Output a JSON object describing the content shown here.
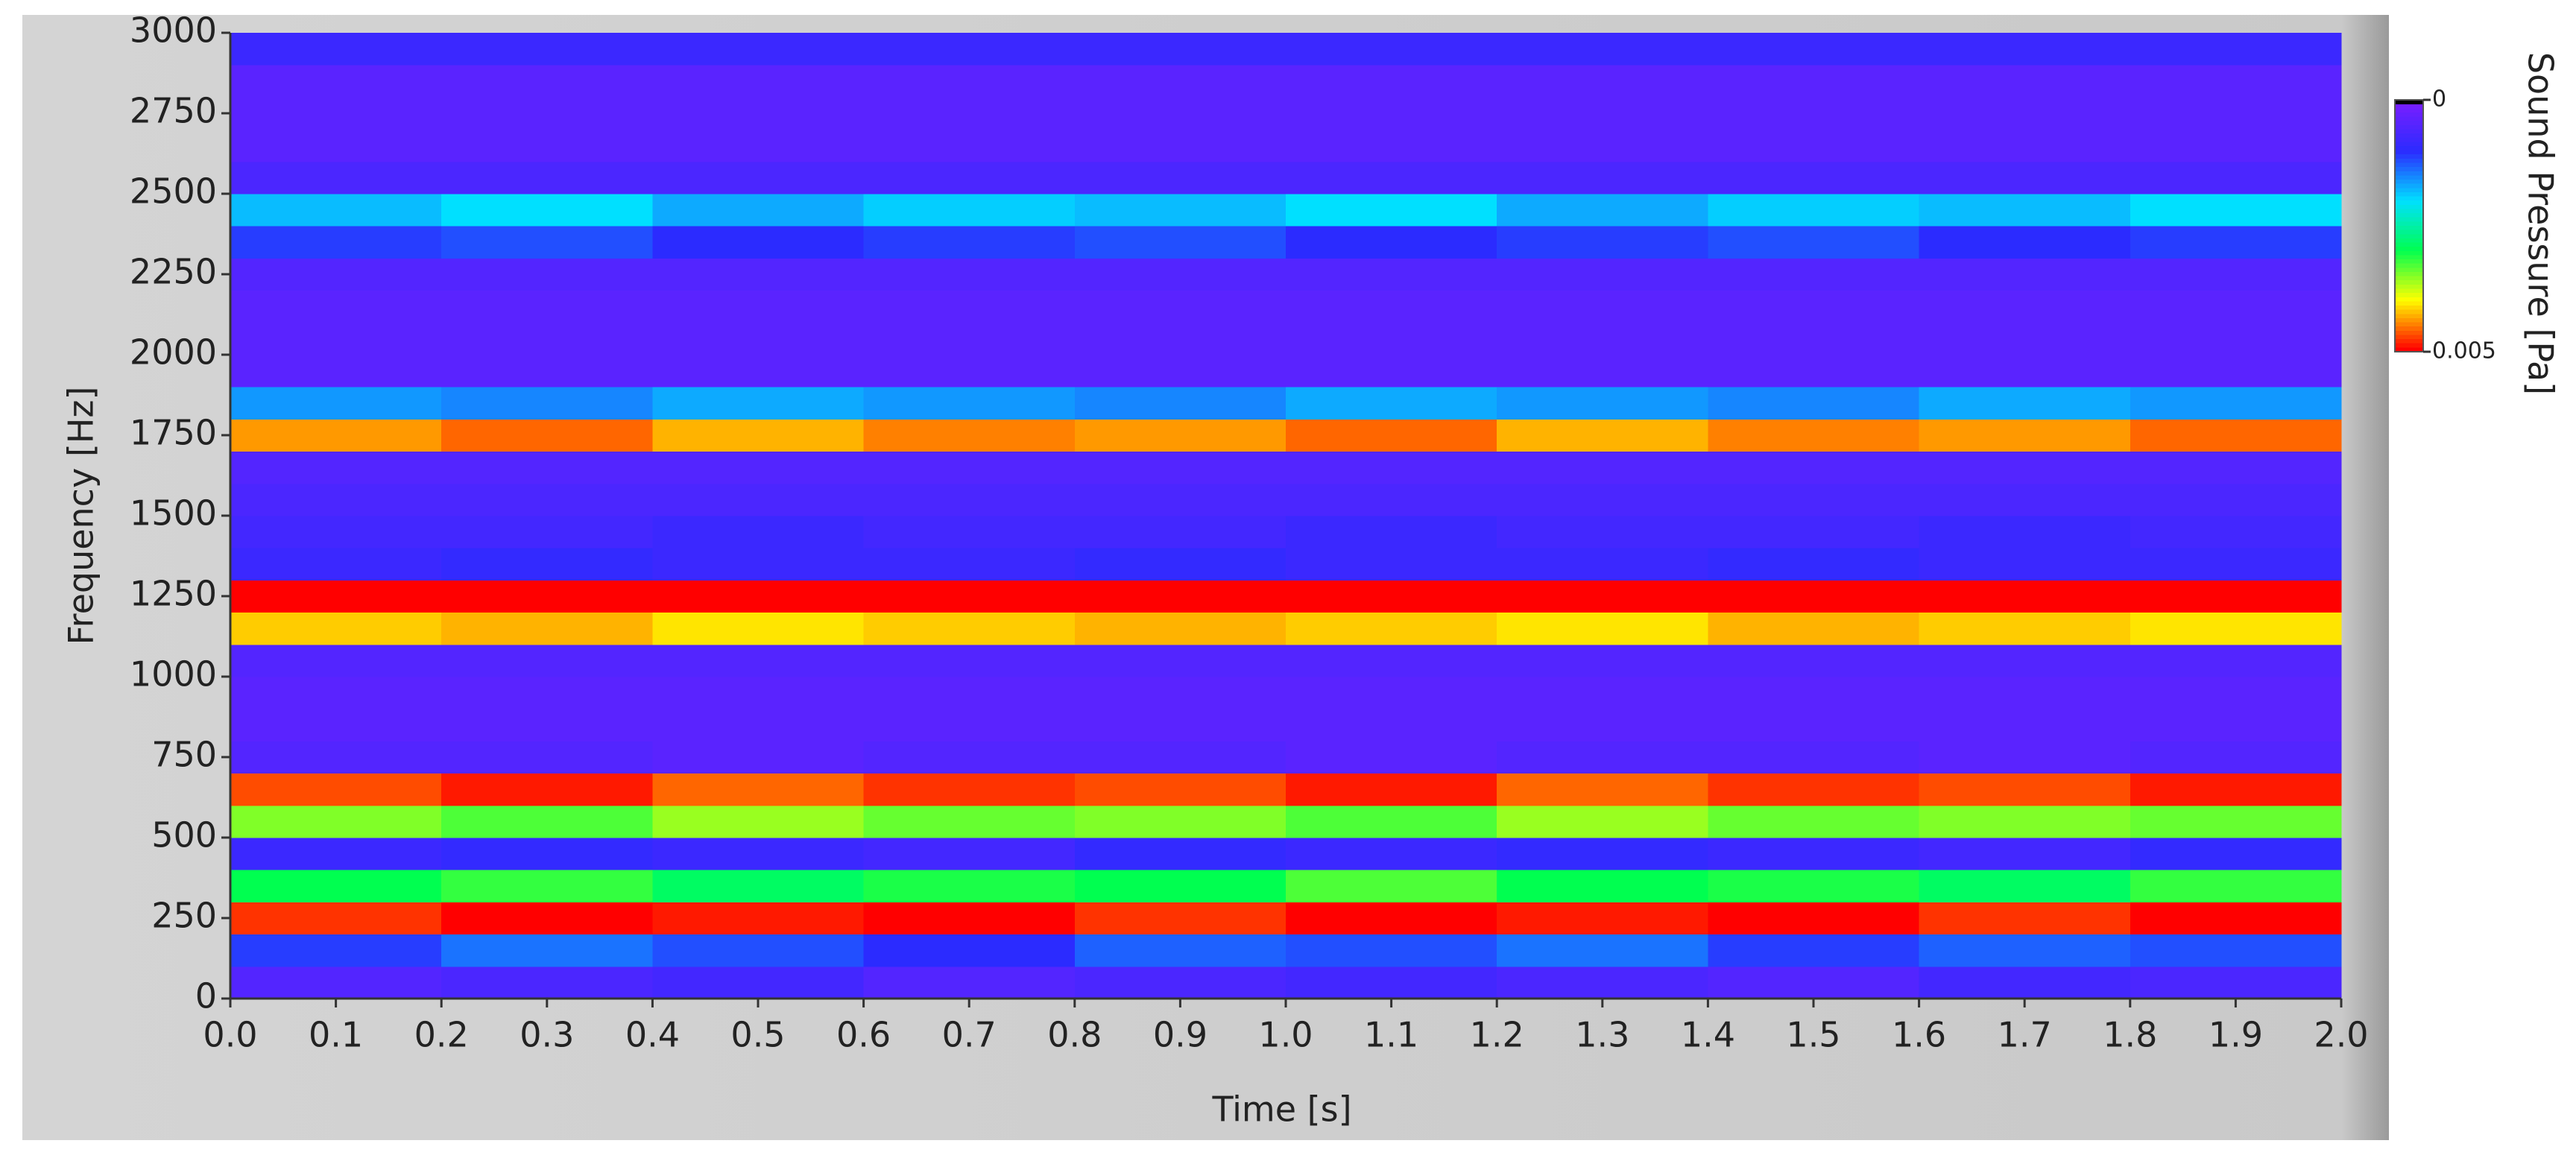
{
  "chart_data": {
    "type": "heatmap",
    "xlabel": "Time [s]",
    "ylabel": "Frequency [Hz]",
    "xlim": [
      0,
      2
    ],
    "ylim": [
      0,
      3000
    ],
    "xticks": [
      {
        "value": 0,
        "label": "0.0"
      },
      0.1,
      0.2,
      0.3,
      0.4,
      0.5,
      0.6,
      0.7,
      0.8,
      0.9,
      {
        "value": 1,
        "label": "1.0"
      },
      1.1,
      1.2,
      1.3,
      1.4,
      1.5,
      1.6,
      1.7,
      1.8,
      1.9,
      {
        "value": 2,
        "label": "2.0"
      }
    ],
    "yticks": [
      0,
      250,
      500,
      750,
      1000,
      1250,
      1500,
      1750,
      2000,
      2250,
      2500,
      2750,
      3000
    ],
    "colormap": [
      "#7a1eff",
      "#2b2bff",
      "#00e0ff",
      "#00ff50",
      "#ffff00",
      "#ff0000"
    ],
    "colorbar": {
      "label": "Sound Pressure [Pa]",
      "lim": [
        0,
        0.005
      ],
      "ticks": [
        0,
        0.005
      ]
    },
    "values": [
      [
        0.0005,
        0.0006,
        0.0007,
        0.0005,
        0.0006,
        0.0007,
        0.0006,
        0.0005,
        0.0007,
        0.0006
      ],
      [
        0.0011,
        0.0014,
        0.0012,
        0.001,
        0.0013,
        0.0012,
        0.0014,
        0.0011,
        0.0013,
        0.0012
      ],
      [
        0.0048,
        0.005,
        0.0049,
        0.005,
        0.0048,
        0.005,
        0.0049,
        0.005,
        0.0048,
        0.005
      ],
      [
        0.003,
        0.0032,
        0.0029,
        0.0031,
        0.003,
        0.0033,
        0.003,
        0.0031,
        0.0029,
        0.0032
      ],
      [
        0.0008,
        0.0009,
        0.0008,
        0.0007,
        0.0009,
        0.0008,
        0.0009,
        0.0008,
        0.0007,
        0.0009
      ],
      [
        0.0035,
        0.0033,
        0.0036,
        0.0034,
        0.0035,
        0.0033,
        0.0036,
        0.0034,
        0.0035,
        0.0034
      ],
      [
        0.0047,
        0.0049,
        0.0046,
        0.0048,
        0.0047,
        0.0049,
        0.0046,
        0.0048,
        0.0047,
        0.0049
      ],
      [
        0.0005,
        0.0005,
        0.0004,
        0.0005,
        0.0005,
        0.0004,
        0.0005,
        0.0005,
        0.0004,
        0.0005
      ],
      [
        0.0004,
        0.0004,
        0.0004,
        0.0004,
        0.0004,
        0.0004,
        0.0004,
        0.0004,
        0.0004,
        0.0004
      ],
      [
        0.0004,
        0.0004,
        0.0004,
        0.0004,
        0.0004,
        0.0004,
        0.0004,
        0.0004,
        0.0004,
        0.0004
      ],
      [
        0.0005,
        0.0005,
        0.0005,
        0.0005,
        0.0005,
        0.0005,
        0.0005,
        0.0005,
        0.0005,
        0.0005
      ],
      [
        0.0042,
        0.0043,
        0.0041,
        0.0042,
        0.0043,
        0.0042,
        0.0041,
        0.0043,
        0.0042,
        0.0041
      ],
      [
        0.005,
        0.005,
        0.005,
        0.005,
        0.005,
        0.005,
        0.005,
        0.005,
        0.005,
        0.005
      ],
      [
        0.0008,
        0.0009,
        0.0008,
        0.0008,
        0.0009,
        0.0008,
        0.0008,
        0.0009,
        0.0008,
        0.0008
      ],
      [
        0.0007,
        0.0007,
        0.0008,
        0.0007,
        0.0007,
        0.0008,
        0.0007,
        0.0007,
        0.0008,
        0.0007
      ],
      [
        0.0006,
        0.0006,
        0.0006,
        0.0006,
        0.0006,
        0.0006,
        0.0006,
        0.0006,
        0.0006,
        0.0006
      ],
      [
        0.0005,
        0.0005,
        0.0005,
        0.0005,
        0.0005,
        0.0005,
        0.0005,
        0.0005,
        0.0005,
        0.0005
      ],
      [
        0.0044,
        0.0046,
        0.0043,
        0.0045,
        0.0044,
        0.0046,
        0.0043,
        0.0045,
        0.0044,
        0.0046
      ],
      [
        0.0016,
        0.0015,
        0.0017,
        0.0016,
        0.0015,
        0.0017,
        0.0016,
        0.0015,
        0.0017,
        0.0016
      ],
      [
        0.0004,
        0.0004,
        0.0004,
        0.0004,
        0.0004,
        0.0004,
        0.0004,
        0.0004,
        0.0004,
        0.0004
      ],
      [
        0.0004,
        0.0004,
        0.0004,
        0.0004,
        0.0004,
        0.0004,
        0.0004,
        0.0004,
        0.0004,
        0.0004
      ],
      [
        0.0004,
        0.0004,
        0.0004,
        0.0004,
        0.0004,
        0.0004,
        0.0004,
        0.0004,
        0.0004,
        0.0004
      ],
      [
        0.0005,
        0.0005,
        0.0005,
        0.0005,
        0.0005,
        0.0005,
        0.0005,
        0.0005,
        0.0005,
        0.0005
      ],
      [
        0.0011,
        0.0012,
        0.001,
        0.0011,
        0.0012,
        0.001,
        0.0011,
        0.0012,
        0.001,
        0.0011
      ],
      [
        0.0018,
        0.002,
        0.0017,
        0.0019,
        0.0018,
        0.002,
        0.0017,
        0.0019,
        0.0018,
        0.002
      ],
      [
        0.0006,
        0.0006,
        0.0006,
        0.0006,
        0.0006,
        0.0006,
        0.0006,
        0.0006,
        0.0006,
        0.0006
      ],
      [
        0.0004,
        0.0004,
        0.0004,
        0.0004,
        0.0004,
        0.0004,
        0.0004,
        0.0004,
        0.0004,
        0.0004
      ],
      [
        0.0004,
        0.0004,
        0.0004,
        0.0004,
        0.0004,
        0.0004,
        0.0004,
        0.0004,
        0.0004,
        0.0004
      ],
      [
        0.0004,
        0.0004,
        0.0004,
        0.0004,
        0.0004,
        0.0004,
        0.0004,
        0.0004,
        0.0004,
        0.0004
      ],
      [
        0.0008,
        0.0008,
        0.0008,
        0.0008,
        0.0008,
        0.0008,
        0.0008,
        0.0008,
        0.0008,
        0.0008
      ]
    ]
  }
}
